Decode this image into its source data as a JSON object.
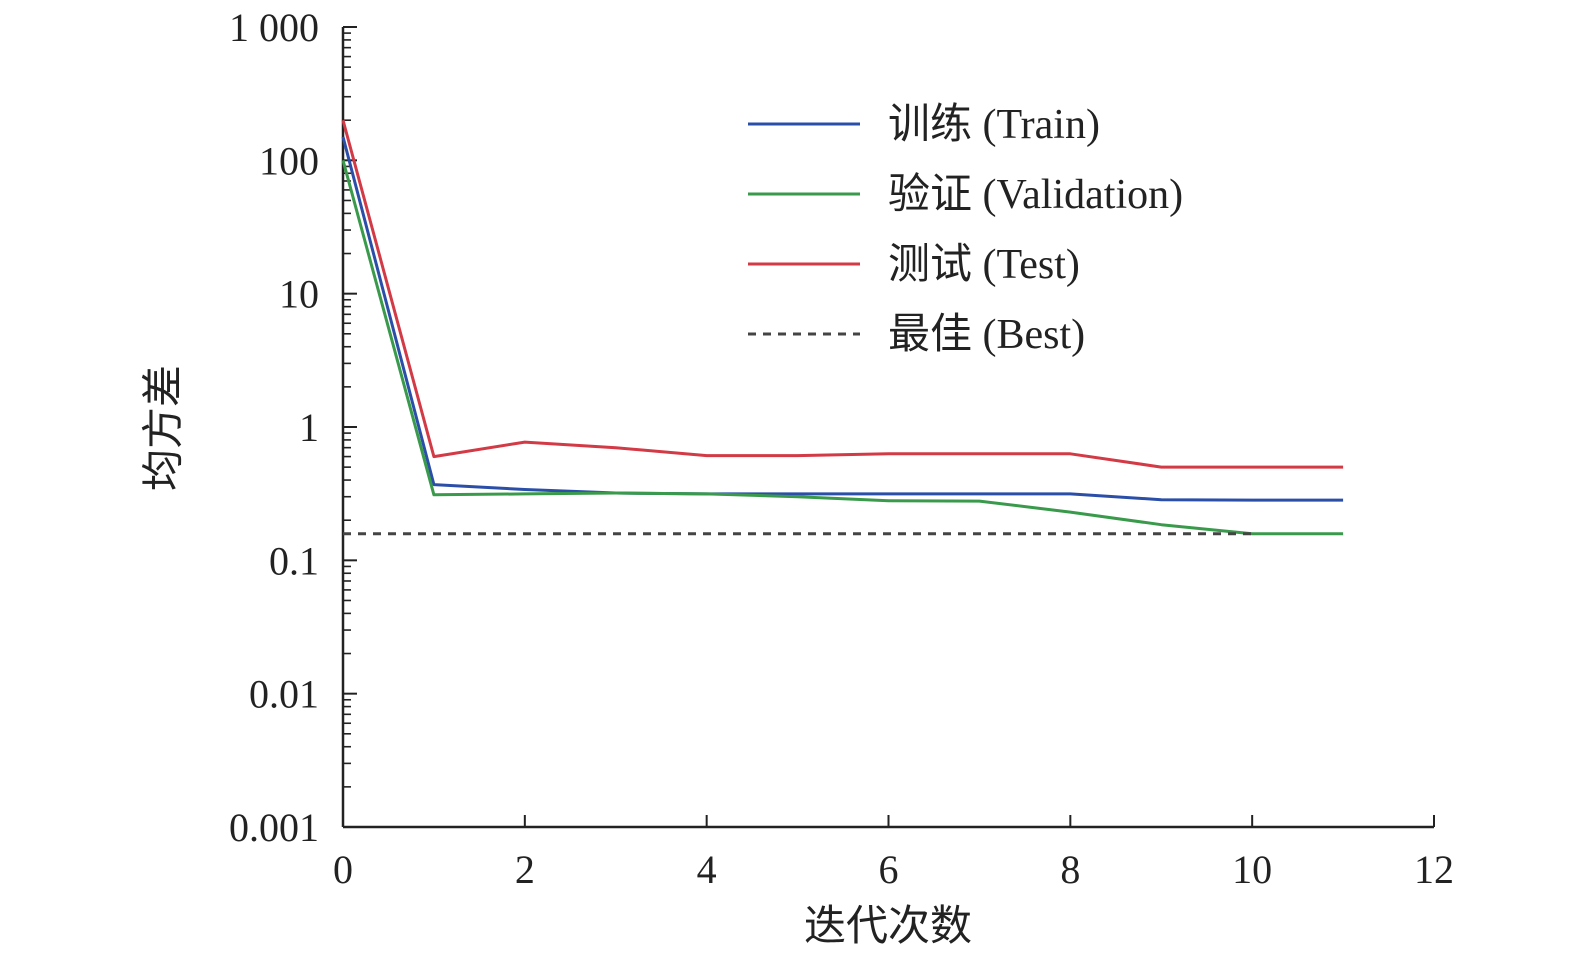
{
  "chart_data": {
    "type": "line",
    "title": "",
    "xlabel": "迭代次数",
    "ylabel": "均方差",
    "x_scale": "linear",
    "y_scale": "log",
    "xlim": [
      0,
      12
    ],
    "ylim": [
      0.001,
      1000
    ],
    "x_ticks": [
      0,
      2,
      4,
      6,
      8,
      10,
      12
    ],
    "x_tick_labels": [
      "0",
      "2",
      "4",
      "6",
      "8",
      "10",
      "12"
    ],
    "y_ticks": [
      0.001,
      0.01,
      0.1,
      1,
      10,
      100,
      1000
    ],
    "y_tick_labels": [
      "0.001",
      "0.01",
      "0.1",
      "1",
      "10",
      "100",
      "1 000"
    ],
    "grid": false,
    "legend_position": "top-right",
    "x": [
      0,
      1,
      2,
      3,
      4,
      5,
      6,
      7,
      8,
      9,
      10,
      11
    ],
    "series": [
      {
        "name": "训练 (Train)",
        "color": "#2b4fa8",
        "style": "solid",
        "values": [
          150,
          0.37,
          0.34,
          0.32,
          0.315,
          0.315,
          0.315,
          0.315,
          0.315,
          0.285,
          0.283,
          0.283
        ]
      },
      {
        "name": "验证 (Validation)",
        "color": "#3a9a4b",
        "style": "solid",
        "values": [
          100,
          0.31,
          0.315,
          0.32,
          0.315,
          0.3,
          0.28,
          0.278,
          0.23,
          0.185,
          0.158,
          0.158
        ]
      },
      {
        "name": "测试 (Test)",
        "color": "#d23a46",
        "style": "solid",
        "values": [
          200,
          0.6,
          0.77,
          0.7,
          0.61,
          0.61,
          0.63,
          0.63,
          0.63,
          0.5,
          0.5,
          0.5
        ]
      },
      {
        "name": "最佳 (Best)",
        "color": "#444444",
        "style": "dashed",
        "x": [
          0,
          10
        ],
        "values": [
          0.158,
          0.158
        ]
      }
    ]
  }
}
